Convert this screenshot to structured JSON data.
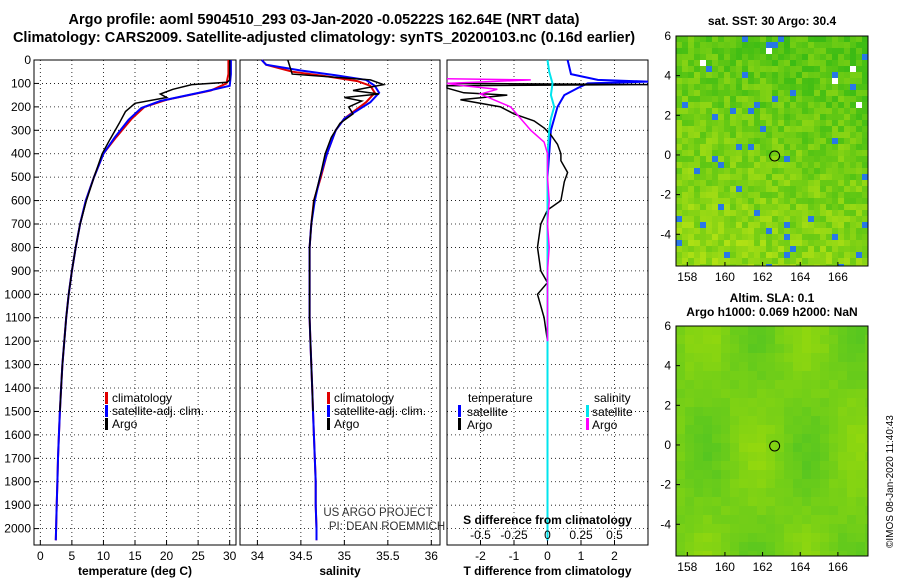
{
  "header": {
    "title_line1": "Argo profile: aoml 5904510_293 03-Jan-2020 -0.05222S 162.64E (NRT data)",
    "title_line2": "Climatology: CARS2009. Satellite-adjusted climatology: synTS_20200103.nc (0.16d earlier)"
  },
  "colors": {
    "climatology": "#e00000",
    "satellite": "#0000ff",
    "argo": "#000000",
    "sat_s": "#00e5ee",
    "argo_s": "#ff00ff"
  },
  "credits": {
    "project": "US ARGO PROJECT",
    "pi": "PI: DEAN ROEMMICH",
    "imos": "©IMOS 08-Jan-2020 11:40:43"
  },
  "chart_data": [
    {
      "id": "temperature",
      "type": "line",
      "xlabel": "temperature (deg C)",
      "xlim": [
        -1,
        31
      ],
      "xticks": [
        0,
        5,
        10,
        15,
        20,
        25,
        30
      ],
      "ylim": [
        2070,
        0
      ],
      "yticks": [
        0,
        100,
        200,
        300,
        400,
        500,
        600,
        700,
        800,
        900,
        1000,
        1100,
        1200,
        1300,
        1400,
        1500,
        1600,
        1700,
        1800,
        1900,
        2000
      ],
      "legend": [
        "climatology",
        "satellite-adj. clim.",
        "Argo"
      ],
      "series": [
        {
          "name": "climatology",
          "color": "red",
          "points": [
            [
              29.8,
              0
            ],
            [
              29.8,
              60
            ],
            [
              29.5,
              100
            ],
            [
              27,
              130
            ],
            [
              20,
              170
            ],
            [
              16.5,
              200
            ],
            [
              14.5,
              250
            ],
            [
              12,
              330
            ],
            [
              10,
              400
            ],
            [
              8.5,
              500
            ],
            [
              7.2,
              600
            ],
            [
              6.3,
              700
            ],
            [
              5.6,
              800
            ],
            [
              5.0,
              900
            ],
            [
              4.5,
              1000
            ],
            [
              4.1,
              1100
            ],
            [
              3.8,
              1200
            ],
            [
              3.5,
              1300
            ],
            [
              3.3,
              1400
            ],
            [
              3.1,
              1500
            ],
            [
              2.95,
              1600
            ],
            [
              2.8,
              1700
            ],
            [
              2.7,
              1800
            ],
            [
              2.6,
              1900
            ],
            [
              2.5,
              2000
            ],
            [
              2.45,
              2050
            ]
          ]
        },
        {
          "name": "satellite",
          "color": "blue",
          "points": [
            [
              30.2,
              0
            ],
            [
              30.2,
              60
            ],
            [
              30.0,
              110
            ],
            [
              26,
              135
            ],
            [
              19,
              175
            ],
            [
              16,
              205
            ],
            [
              14,
              255
            ],
            [
              11.8,
              330
            ],
            [
              10,
              400
            ],
            [
              8.5,
              500
            ],
            [
              7.2,
              600
            ],
            [
              6.3,
              700
            ],
            [
              5.6,
              800
            ],
            [
              5.0,
              900
            ],
            [
              4.5,
              1000
            ],
            [
              4.1,
              1100
            ],
            [
              3.8,
              1200
            ],
            [
              3.5,
              1300
            ],
            [
              3.3,
              1400
            ],
            [
              3.1,
              1500
            ],
            [
              2.95,
              1600
            ],
            [
              2.8,
              1700
            ],
            [
              2.7,
              1800
            ],
            [
              2.6,
              1900
            ],
            [
              2.5,
              2000
            ],
            [
              2.45,
              2050
            ]
          ]
        },
        {
          "name": "Argo",
          "color": "black",
          "points": [
            [
              30.0,
              0
            ],
            [
              30.0,
              85
            ],
            [
              29.6,
              95
            ],
            [
              24,
              105
            ],
            [
              21,
              125
            ],
            [
              19,
              145
            ],
            [
              20,
              160
            ],
            [
              15,
              185
            ],
            [
              13.5,
              220
            ],
            [
              12.5,
              270
            ],
            [
              11,
              340
            ],
            [
              9.8,
              400
            ],
            [
              8.5,
              500
            ],
            [
              7.3,
              600
            ],
            [
              6.3,
              700
            ],
            [
              5.6,
              800
            ],
            [
              5.0,
              900
            ],
            [
              4.5,
              1000
            ],
            [
              4.1,
              1100
            ],
            [
              3.8,
              1200
            ],
            [
              3.5,
              1300
            ],
            [
              3.3,
              1400
            ],
            [
              3.1,
              1500
            ]
          ]
        }
      ]
    },
    {
      "id": "salinity",
      "type": "line",
      "xlabel": "salinity",
      "xlim": [
        33.8,
        36.1
      ],
      "xticks": [
        34,
        34.5,
        35,
        35.5,
        36
      ],
      "ylim": [
        2070,
        0
      ],
      "legend": [
        "climatology",
        "satellite-adj. clim.",
        "Argo"
      ],
      "series": [
        {
          "name": "climatology",
          "color": "red",
          "points": [
            [
              34.05,
              0
            ],
            [
              34.1,
              20
            ],
            [
              34.4,
              50
            ],
            [
              34.8,
              70
            ],
            [
              35.15,
              90
            ],
            [
              35.3,
              110
            ],
            [
              35.35,
              140
            ],
            [
              35.25,
              180
            ],
            [
              35.0,
              250
            ],
            [
              34.9,
              300
            ],
            [
              34.8,
              400
            ],
            [
              34.73,
              500
            ],
            [
              34.65,
              600
            ],
            [
              34.62,
              700
            ],
            [
              34.6,
              800
            ],
            [
              34.6,
              900
            ],
            [
              34.6,
              1000
            ],
            [
              34.6,
              1100
            ],
            [
              34.61,
              1200
            ],
            [
              34.62,
              1300
            ],
            [
              34.63,
              1400
            ],
            [
              34.64,
              1500
            ],
            [
              34.65,
              1600
            ],
            [
              34.66,
              1700
            ],
            [
              34.67,
              1800
            ],
            [
              34.67,
              1900
            ],
            [
              34.68,
              2000
            ],
            [
              34.68,
              2050
            ]
          ]
        },
        {
          "name": "satellite",
          "color": "blue",
          "points": [
            [
              34.05,
              0
            ],
            [
              34.1,
              20
            ],
            [
              34.5,
              45
            ],
            [
              34.9,
              65
            ],
            [
              35.25,
              85
            ],
            [
              35.35,
              110
            ],
            [
              35.4,
              140
            ],
            [
              35.3,
              180
            ],
            [
              35.0,
              250
            ],
            [
              34.9,
              300
            ],
            [
              34.8,
              400
            ],
            [
              34.72,
              500
            ],
            [
              34.66,
              600
            ],
            [
              34.62,
              700
            ],
            [
              34.6,
              800
            ],
            [
              34.6,
              900
            ],
            [
              34.6,
              1000
            ],
            [
              34.6,
              1100
            ],
            [
              34.61,
              1200
            ],
            [
              34.62,
              1300
            ],
            [
              34.63,
              1400
            ],
            [
              34.64,
              1500
            ],
            [
              34.65,
              1600
            ],
            [
              34.66,
              1700
            ],
            [
              34.67,
              1800
            ],
            [
              34.67,
              1900
            ],
            [
              34.68,
              2000
            ],
            [
              34.68,
              2050
            ]
          ]
        },
        {
          "name": "Argo",
          "color": "black",
          "points": [
            [
              34.35,
              0
            ],
            [
              34.4,
              60
            ],
            [
              35.3,
              85
            ],
            [
              35.45,
              105
            ],
            [
              35.1,
              130
            ],
            [
              35.4,
              145
            ],
            [
              35.0,
              160
            ],
            [
              35.2,
              175
            ],
            [
              35.05,
              200
            ],
            [
              35.1,
              230
            ],
            [
              34.95,
              270
            ],
            [
              34.85,
              330
            ],
            [
              34.78,
              400
            ],
            [
              34.72,
              500
            ],
            [
              34.65,
              600
            ],
            [
              34.62,
              700
            ],
            [
              34.6,
              800
            ],
            [
              34.6,
              900
            ],
            [
              34.6,
              1000
            ],
            [
              34.6,
              1100
            ],
            [
              34.61,
              1200
            ],
            [
              34.62,
              1300
            ],
            [
              34.63,
              1400
            ],
            [
              34.64,
              1500
            ]
          ]
        }
      ]
    },
    {
      "id": "difference",
      "type": "line",
      "xlabel": "T difference from climatology",
      "xlim": [
        -3,
        3
      ],
      "xticks": [
        -2,
        -1,
        0,
        1,
        2
      ],
      "top_xlabel": "S difference from climatology",
      "top_xticks": [
        -0.5,
        -0.25,
        0,
        0.25,
        0.5
      ],
      "top_xticklabels": [
        "-0.5",
        "-0.25",
        "0",
        "0.25",
        "0.5"
      ],
      "ylim": [
        2070,
        0
      ],
      "legend_t_title": "temperature",
      "legend_s_title": "salinity",
      "legend_t": [
        "satellite",
        "Argo"
      ],
      "legend_s": [
        "satellite",
        "Argo"
      ],
      "series": [
        {
          "name": "T satellite",
          "color": "blue",
          "points": [
            [
              0.6,
              0
            ],
            [
              0.7,
              60
            ],
            [
              1.5,
              85
            ],
            [
              3,
              92
            ],
            [
              1.2,
              100
            ],
            [
              0.9,
              120
            ],
            [
              0.5,
              150
            ],
            [
              0.3,
              200
            ],
            [
              0.2,
              250
            ],
            [
              0.1,
              300
            ],
            [
              0.05,
              400
            ],
            [
              0,
              500
            ],
            [
              0,
              2050
            ]
          ]
        },
        {
          "name": "T Argo",
          "color": "black",
          "points": [
            [
              -3,
              100
            ],
            [
              3,
              105
            ],
            [
              -3,
              110
            ],
            [
              -3,
              120
            ],
            [
              -2.5,
              140
            ],
            [
              -1.2,
              150
            ],
            [
              -2.6,
              170
            ],
            [
              -1.4,
              200
            ],
            [
              -1.0,
              230
            ],
            [
              -0.4,
              260
            ],
            [
              -0.1,
              290
            ],
            [
              0.1,
              320
            ],
            [
              0.3,
              360
            ],
            [
              0.4,
              400
            ],
            [
              0.4,
              430
            ],
            [
              0.6,
              480
            ],
            [
              0.5,
              520
            ],
            [
              0.4,
              600
            ],
            [
              0,
              640
            ],
            [
              -0.2,
              700
            ],
            [
              -0.3,
              800
            ],
            [
              -0.2,
              900
            ],
            [
              0,
              950
            ],
            [
              -0.3,
              1000
            ],
            [
              -0.1,
              1100
            ],
            [
              0,
              1200
            ]
          ]
        },
        {
          "name": "S satellite",
          "color": "cyan",
          "points": [
            [
              0,
              0
            ],
            [
              0.05,
              50
            ],
            [
              0.15,
              100
            ],
            [
              0.1,
              150
            ],
            [
              0.2,
              200
            ],
            [
              0.1,
              250
            ],
            [
              0.05,
              300
            ],
            [
              0,
              400
            ],
            [
              0,
              2050
            ]
          ]
        },
        {
          "name": "S Argo",
          "color": "magenta",
          "points": [
            [
              -3,
              80
            ],
            [
              -0.5,
              85
            ],
            [
              -3,
              100
            ],
            [
              -2.5,
              110
            ],
            [
              -1.5,
              125
            ],
            [
              -2.0,
              145
            ],
            [
              -1.6,
              170
            ],
            [
              -1.1,
              200
            ],
            [
              -0.8,
              250
            ],
            [
              -0.5,
              300
            ],
            [
              -0.1,
              350
            ],
            [
              0,
              400
            ],
            [
              0,
              500
            ],
            [
              0.05,
              600
            ],
            [
              0,
              700
            ],
            [
              0.05,
              800
            ],
            [
              0,
              900
            ],
            [
              0,
              1000
            ],
            [
              0,
              1100
            ],
            [
              0,
              1200
            ]
          ]
        }
      ]
    },
    {
      "id": "sst_map",
      "type": "heatmap",
      "title": "sat. SST: 30 Argo: 30.4",
      "xticks": [
        158,
        160,
        162,
        164,
        166
      ],
      "xlim": [
        157.4,
        167.6
      ],
      "yticks": [
        -4,
        -2,
        0,
        2,
        4,
        6
      ],
      "ylim": [
        -5.6,
        6
      ],
      "marker": {
        "lon": 162.64,
        "lat": -0.05
      }
    },
    {
      "id": "sla_map",
      "type": "heatmap",
      "title": "Altim. SLA: 0.1",
      "subtitle": "Argo h1000: 0.069 h2000: NaN",
      "xticks": [
        158,
        160,
        162,
        164,
        166
      ],
      "xlim": [
        157.4,
        167.6
      ],
      "yticks": [
        -4,
        -2,
        0,
        2,
        4,
        6
      ],
      "ylim": [
        -5.6,
        6
      ],
      "marker": {
        "lon": 162.64,
        "lat": -0.05
      }
    }
  ]
}
